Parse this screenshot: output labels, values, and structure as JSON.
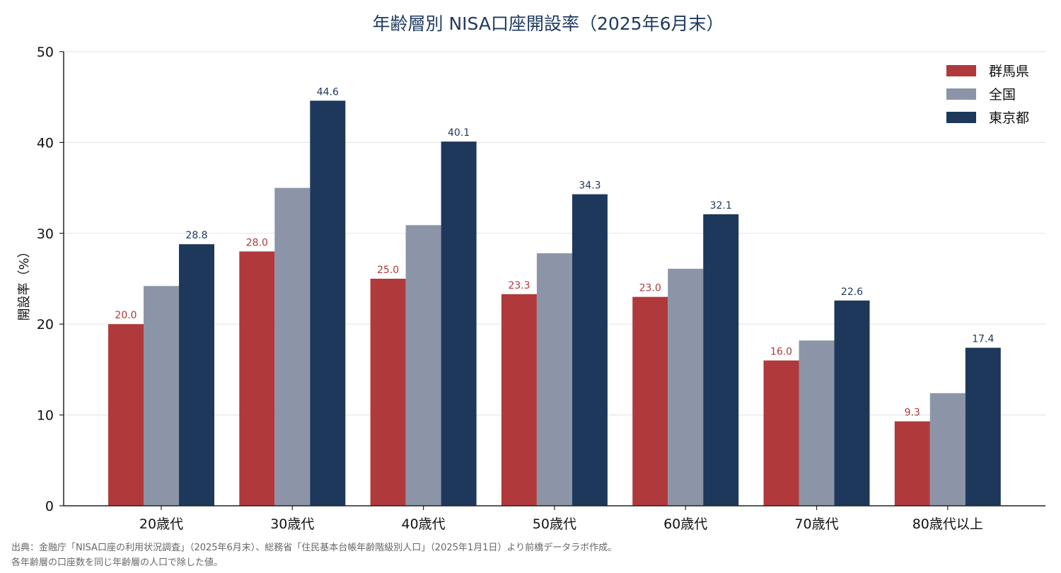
{
  "chart_data": {
    "type": "bar",
    "title": "年齢層別 NISA口座開設率（2025年6月末）",
    "ylabel": "開設率（%）",
    "xlabel": "",
    "ylim": [
      0,
      50
    ],
    "yticks": [
      0,
      10,
      20,
      30,
      40,
      50
    ],
    "grid": true,
    "legend_position": "top-right",
    "categories": [
      "20歳代",
      "30歳代",
      "40歳代",
      "50歳代",
      "60歳代",
      "70歳代",
      "80歳代以上"
    ],
    "series": [
      {
        "name": "群馬県",
        "color": "#b0393b",
        "label_color": "#b0393b",
        "show_labels": true,
        "values": [
          20.0,
          28.0,
          25.0,
          23.3,
          23.0,
          16.0,
          9.3
        ]
      },
      {
        "name": "全国",
        "color": "#8c95a8",
        "label_color": "#8c95a8",
        "show_labels": false,
        "values": [
          24.2,
          35.0,
          30.9,
          27.8,
          26.1,
          18.2,
          12.4
        ]
      },
      {
        "name": "東京都",
        "color": "#1e385c",
        "label_color": "#1e385c",
        "show_labels": true,
        "values": [
          28.8,
          44.6,
          40.1,
          34.3,
          32.1,
          22.6,
          17.4
        ]
      }
    ]
  },
  "source": {
    "line1": "出典：金融庁「NISA口座の利用状況調査」（2025年6月末）、総務省「住民基本台帳年齢階級別人口」（2025年1月1日）より前橋データラボ作成。",
    "line2": "各年齢層の口座数を同じ年齢層の人口で除した値。"
  }
}
